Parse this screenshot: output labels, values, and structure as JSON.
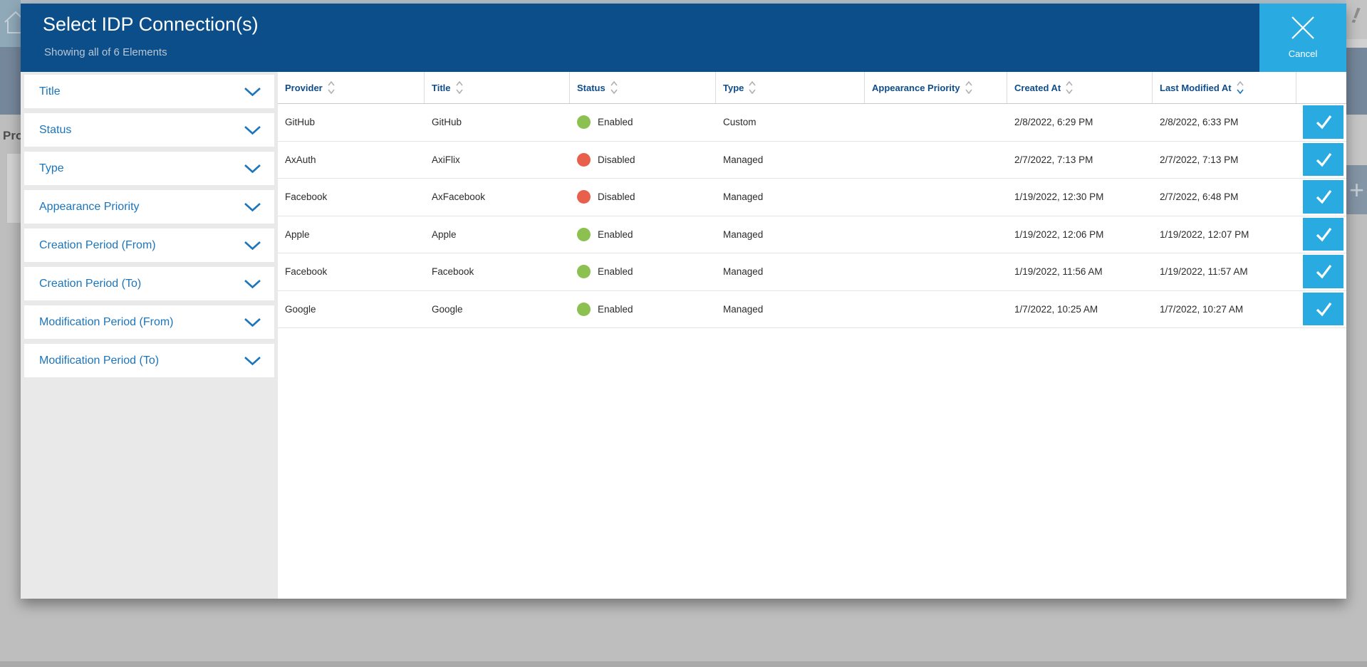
{
  "modal": {
    "title": "Select IDP Connection(s)",
    "subtitle": "Showing all of 6 Elements",
    "cancel_label": "Cancel"
  },
  "filters": [
    {
      "label": "Title"
    },
    {
      "label": "Status"
    },
    {
      "label": "Type"
    },
    {
      "label": "Appearance Priority"
    },
    {
      "label": "Creation Period (From)"
    },
    {
      "label": "Creation Period (To)"
    },
    {
      "label": "Modification Period (From)"
    },
    {
      "label": "Modification Period (To)"
    }
  ],
  "table": {
    "columns": [
      {
        "key": "provider",
        "label": "Provider"
      },
      {
        "key": "title",
        "label": "Title"
      },
      {
        "key": "status",
        "label": "Status"
      },
      {
        "key": "type",
        "label": "Type"
      },
      {
        "key": "appearance_priority",
        "label": "Appearance Priority"
      },
      {
        "key": "created_at",
        "label": "Created At"
      },
      {
        "key": "last_modified_at",
        "label": "Last Modified At"
      }
    ],
    "sort": {
      "column": "last_modified_at",
      "direction": "desc"
    },
    "rows": [
      {
        "provider": "GitHub",
        "title": "GitHub",
        "status": "Enabled",
        "type": "Custom",
        "appearance_priority": "",
        "created_at": "2/8/2022, 6:29 PM",
        "last_modified_at": "2/8/2022, 6:33 PM",
        "selected": true
      },
      {
        "provider": "AxAuth",
        "title": "AxiFlix",
        "status": "Disabled",
        "type": "Managed",
        "appearance_priority": "",
        "created_at": "2/7/2022, 7:13 PM",
        "last_modified_at": "2/7/2022, 7:13 PM",
        "selected": true
      },
      {
        "provider": "Facebook",
        "title": "AxFacebook",
        "status": "Disabled",
        "type": "Managed",
        "appearance_priority": "",
        "created_at": "1/19/2022, 12:30 PM",
        "last_modified_at": "2/7/2022, 6:48 PM",
        "selected": true
      },
      {
        "provider": "Apple",
        "title": "Apple",
        "status": "Enabled",
        "type": "Managed",
        "appearance_priority": "",
        "created_at": "1/19/2022, 12:06 PM",
        "last_modified_at": "1/19/2022, 12:07 PM",
        "selected": true
      },
      {
        "provider": "Facebook",
        "title": "Facebook",
        "status": "Enabled",
        "type": "Managed",
        "appearance_priority": "",
        "created_at": "1/19/2022, 11:56 AM",
        "last_modified_at": "1/19/2022, 11:57 AM",
        "selected": true
      },
      {
        "provider": "Google",
        "title": "Google",
        "status": "Enabled",
        "type": "Managed",
        "appearance_priority": "",
        "created_at": "1/7/2022, 10:25 AM",
        "last_modified_at": "1/7/2022, 10:27 AM",
        "selected": true
      }
    ]
  },
  "colors": {
    "header_blue": "#0B4E89",
    "accent_blue": "#29ABE2",
    "link_blue": "#1B75BC",
    "status_enabled": "#8CC152",
    "status_disabled": "#E8604C"
  },
  "background": {
    "page_heading_partial": "Pro",
    "alert_glyph": "!",
    "add_glyph": "+"
  }
}
